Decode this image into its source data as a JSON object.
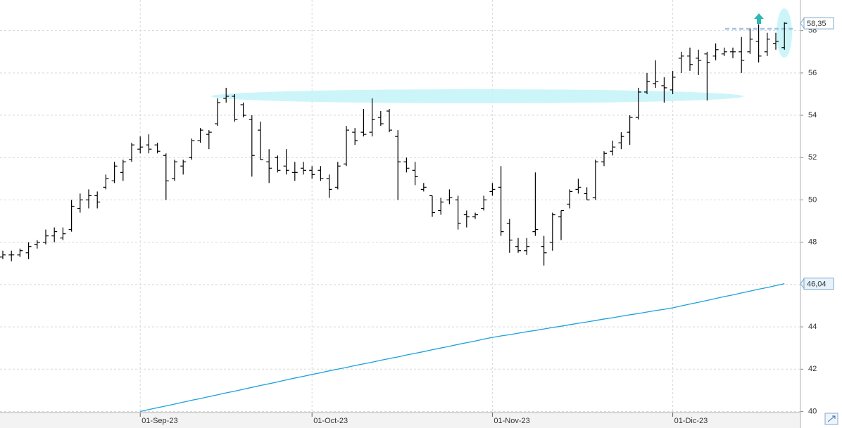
{
  "chart_data": {
    "type": "ohlc",
    "categories": [
      null,
      null,
      null,
      null,
      null,
      null,
      null,
      null,
      null,
      null,
      null,
      null,
      null,
      null,
      null,
      null,
      "01-Sep-23",
      null,
      null,
      null,
      null,
      null,
      null,
      null,
      null,
      null,
      null,
      null,
      null,
      null,
      null,
      null,
      null,
      null,
      null,
      null,
      "01-Oct-23",
      null,
      null,
      null,
      null,
      null,
      null,
      null,
      null,
      null,
      null,
      null,
      null,
      null,
      null,
      null,
      null,
      null,
      null,
      null,
      null,
      "01-Nov-23",
      null,
      null,
      null,
      null,
      null,
      null,
      null,
      null,
      null,
      null,
      null,
      null,
      null,
      null,
      null,
      null,
      null,
      null,
      null,
      null,
      "01-Dic-23",
      null,
      null,
      null,
      null,
      null,
      null,
      null,
      null,
      null,
      null,
      null,
      null,
      null
    ],
    "open": [
      47.3,
      47.4,
      47.4,
      47.5,
      47.9,
      48.0,
      48.3,
      48.2,
      48.6,
      49.6,
      50.0,
      50.2,
      50.6,
      50.9,
      51.3,
      51.9,
      52.4,
      52.6,
      52.6,
      52.1,
      51.0,
      51.6,
      52.0,
      52.8,
      53.1,
      53.6,
      54.8,
      54.9,
      54.5,
      53.8,
      53.3,
      51.8,
      52.0,
      51.6,
      51.3,
      51.5,
      51.4,
      51.4,
      51.0,
      50.6,
      51.7,
      53.2,
      53.2,
      53.2,
      53.9,
      54.2,
      53.0,
      51.8,
      51.4,
      50.5,
      50.2,
      49.5,
      50.0,
      50.0,
      49.3,
      49.2,
      49.6,
      50.4,
      50.6,
      48.9,
      47.8,
      47.6,
      48.5,
      47.8,
      48.0,
      49.2,
      49.8,
      50.5,
      50.3,
      50.1,
      51.8,
      52.3,
      52.7,
      53.2,
      53.9,
      55.1,
      55.5,
      55.4,
      55.2,
      56.7,
      56.8,
      56.7,
      56.9,
      56.8,
      56.9,
      57.0,
      57.0,
      57.0,
      57.5,
      57.0,
      57.4,
      57.2
    ],
    "high": [
      47.6,
      47.6,
      47.7,
      48.0,
      48.1,
      48.6,
      48.7,
      48.7,
      50.0,
      50.3,
      50.5,
      50.4,
      51.2,
      51.8,
      51.9,
      52.7,
      53.0,
      53.1,
      52.7,
      52.2,
      51.9,
      51.9,
      52.9,
      53.4,
      53.3,
      54.8,
      55.3,
      55.0,
      54.6,
      54.0,
      53.7,
      52.4,
      52.1,
      52.4,
      51.8,
      51.8,
      51.6,
      51.6,
      51.2,
      51.8,
      53.5,
      53.4,
      54.3,
      54.8,
      54.2,
      54.3,
      53.3,
      52.0,
      51.8,
      50.8,
      50.2,
      50.1,
      50.5,
      50.2,
      49.5,
      49.4,
      50.2,
      50.8,
      51.6,
      49.1,
      48.2,
      48.2,
      51.3,
      48.3,
      49.4,
      49.5,
      50.5,
      51.0,
      50.6,
      51.9,
      52.3,
      52.8,
      53.2,
      54.0,
      55.3,
      56.0,
      56.6,
      55.8,
      56.1,
      57.0,
      57.2,
      57.1,
      57.0,
      57.4,
      57.2,
      57.2,
      57.7,
      58.1,
      58.3,
      57.9,
      57.9,
      58.4
    ],
    "low": [
      47.2,
      47.1,
      47.3,
      47.2,
      47.7,
      47.9,
      48.0,
      48.1,
      48.5,
      49.4,
      49.6,
      49.6,
      50.5,
      50.8,
      50.9,
      51.8,
      52.2,
      52.2,
      52.2,
      50.0,
      50.9,
      51.2,
      51.9,
      52.7,
      52.4,
      53.5,
      54.6,
      53.7,
      53.9,
      51.1,
      51.9,
      50.8,
      51.3,
      51.2,
      50.9,
      51.2,
      51.0,
      50.9,
      50.1,
      50.5,
      51.6,
      52.6,
      53.0,
      53.0,
      53.5,
      53.2,
      50.0,
      51.3,
      50.7,
      50.4,
      49.2,
      49.3,
      49.8,
      48.6,
      48.7,
      49.1,
      49.5,
      50.2,
      48.3,
      47.5,
      47.5,
      47.4,
      48.3,
      46.9,
      47.6,
      48.1,
      49.6,
      50.3,
      50.0,
      50.0,
      51.6,
      52.1,
      52.4,
      52.6,
      53.8,
      55.0,
      55.3,
      54.6,
      55.0,
      56.0,
      56.1,
      55.9,
      54.7,
      56.6,
      56.8,
      56.7,
      56.0,
      56.9,
      56.5,
      56.8,
      57.1,
      57.1
    ],
    "close": [
      47.4,
      47.4,
      47.6,
      47.8,
      48.0,
      48.3,
      48.5,
      48.4,
      49.7,
      50.0,
      50.2,
      49.9,
      51.0,
      51.6,
      51.8,
      52.6,
      52.5,
      52.4,
      52.3,
      50.9,
      51.8,
      51.8,
      52.8,
      53.3,
      53.2,
      54.6,
      54.9,
      53.8,
      54.0,
      52.1,
      51.9,
      51.5,
      51.4,
      51.4,
      51.3,
      51.4,
      51.2,
      51.0,
      50.5,
      51.6,
      53.3,
      52.8,
      53.1,
      53.8,
      53.6,
      53.3,
      51.8,
      51.5,
      51.1,
      50.6,
      49.4,
      49.9,
      50.1,
      48.9,
      49.2,
      49.3,
      50.0,
      50.5,
      48.5,
      48.1,
      47.6,
      47.8,
      48.6,
      47.5,
      49.3,
      49.5,
      50.4,
      50.6,
      50.0,
      51.8,
      52.2,
      52.5,
      53.0,
      53.9,
      55.1,
      55.6,
      55.6,
      55.3,
      55.8,
      56.8,
      56.4,
      56.6,
      56.5,
      57.1,
      57.0,
      57.0,
      56.6,
      57.6,
      56.8,
      57.6,
      57.5,
      58.35
    ],
    "color": "#000000",
    "moving_average": {
      "color": "#1ba1dd",
      "values": [
        null,
        null,
        null,
        null,
        null,
        null,
        null,
        null,
        null,
        null,
        null,
        null,
        null,
        null,
        null,
        null,
        40.0,
        40.09,
        40.18,
        40.26,
        40.35,
        40.44,
        40.53,
        40.61,
        40.7,
        40.79,
        40.88,
        40.96,
        41.05,
        41.14,
        41.23,
        41.31,
        41.4,
        41.49,
        41.58,
        41.66,
        41.75,
        41.83,
        41.92,
        42.0,
        42.08,
        42.17,
        42.25,
        42.33,
        42.42,
        42.5,
        42.58,
        42.67,
        42.75,
        42.83,
        42.92,
        43.0,
        43.08,
        43.17,
        43.25,
        43.33,
        43.42,
        43.5,
        43.57,
        43.63,
        43.7,
        43.77,
        43.83,
        43.9,
        43.97,
        44.03,
        44.1,
        44.17,
        44.23,
        44.3,
        44.37,
        44.43,
        44.5,
        44.57,
        44.63,
        44.7,
        44.77,
        44.83,
        44.9,
        44.99,
        45.08,
        45.16,
        45.25,
        45.34,
        45.43,
        45.51,
        45.6,
        45.69,
        45.78,
        45.86,
        45.95,
        46.04
      ]
    },
    "price_labels": [
      {
        "value": 58.35,
        "label": "58,35"
      },
      {
        "value": 46.04,
        "label": "46,04"
      }
    ],
    "ylim": [
      39.95,
      59.45
    ],
    "yticks": [
      40,
      42,
      44,
      46,
      48,
      50,
      52,
      54,
      56,
      58
    ],
    "grid": true
  }
}
